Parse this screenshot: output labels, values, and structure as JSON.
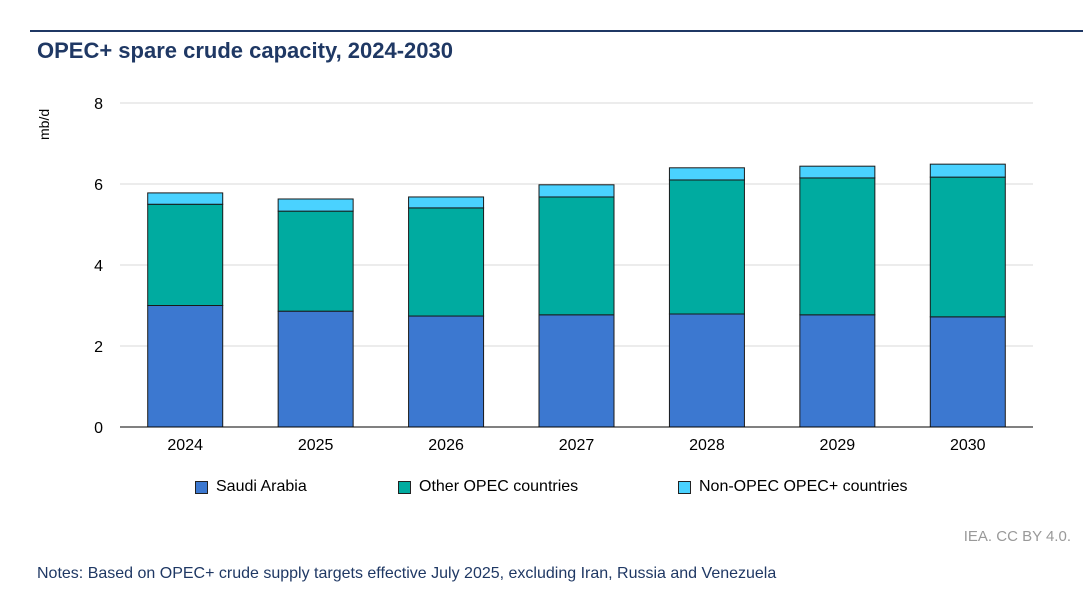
{
  "chart_data": {
    "type": "bar",
    "stacked": true,
    "title": "OPEC+ spare crude capacity, 2024-2030",
    "ylabel": "mb/d",
    "ylim": [
      0,
      8
    ],
    "yticks": [
      "0",
      "2",
      "4",
      "6",
      "8"
    ],
    "grid": true,
    "legend_position": "bottom",
    "categories": [
      "2024",
      "2025",
      "2026",
      "2027",
      "2028",
      "2029",
      "2030"
    ],
    "series": [
      {
        "name": "Saudi Arabia",
        "color": "#3c78d0",
        "values": [
          3.0,
          2.86,
          2.74,
          2.77,
          2.79,
          2.77,
          2.72
        ]
      },
      {
        "name": "Other OPEC countries",
        "color": "#00aba0",
        "values": [
          2.5,
          2.47,
          2.67,
          2.91,
          3.31,
          3.38,
          3.45
        ]
      },
      {
        "name": "Non-OPEC OPEC+ countries",
        "color": "#4ad2ff",
        "values": [
          0.28,
          0.3,
          0.27,
          0.3,
          0.3,
          0.29,
          0.32
        ]
      }
    ]
  },
  "credit": "IEA. CC BY 4.0.",
  "notes": "Notes: Based on OPEC+ crude supply targets effective July 2025, excluding Iran, Russia and Venezuela"
}
